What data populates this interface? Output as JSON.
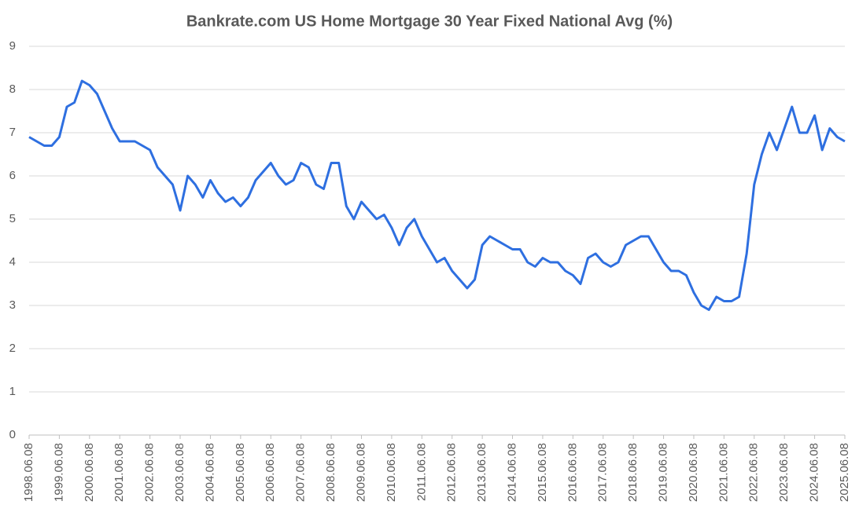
{
  "chart_data": {
    "type": "line",
    "title": "Bankrate.com US Home Mortgage 30 Year Fixed National Avg  (%)",
    "categories": [
      "1998.06.08",
      null,
      null,
      null,
      "1999.06.08",
      null,
      null,
      null,
      "2000.06.08",
      null,
      null,
      null,
      "2001.06.08",
      null,
      null,
      null,
      "2002.06.08",
      null,
      null,
      null,
      "2003.06.08",
      null,
      null,
      null,
      "2004.06.08",
      null,
      null,
      null,
      "2005.06.08",
      null,
      null,
      null,
      "2006.06.08",
      null,
      null,
      null,
      "2007.06.08",
      null,
      null,
      null,
      "2008.06.08",
      null,
      null,
      null,
      "2009.06.08",
      null,
      null,
      null,
      "2010.06.08",
      null,
      null,
      null,
      "2011.06.08",
      null,
      null,
      null,
      "2012.06.08",
      null,
      null,
      null,
      "2013.06.08",
      null,
      null,
      null,
      "2014.06.08",
      null,
      null,
      null,
      "2015.06.08",
      null,
      null,
      null,
      "2016.06.08",
      null,
      null,
      null,
      "2017.06.08",
      null,
      null,
      null,
      "2018.06.08",
      null,
      null,
      null,
      "2019.06.08",
      null,
      null,
      null,
      "2020.06.08",
      null,
      null,
      null,
      "2021.06.08",
      null,
      null,
      null,
      "2022.06.08",
      null,
      null,
      null,
      "2023.06.08",
      null,
      null,
      null,
      "2024.06.08",
      null,
      null,
      null,
      "2025.06.08"
    ],
    "values": [
      6.9,
      6.8,
      6.7,
      6.7,
      6.9,
      7.6,
      7.7,
      8.2,
      8.1,
      7.9,
      7.5,
      7.1,
      6.8,
      6.8,
      6.8,
      6.7,
      6.6,
      6.2,
      6.0,
      5.8,
      5.2,
      6.0,
      5.8,
      5.5,
      5.9,
      5.6,
      5.4,
      5.5,
      5.3,
      5.5,
      5.9,
      6.1,
      6.3,
      6.0,
      5.8,
      5.9,
      6.3,
      6.2,
      5.8,
      5.7,
      6.3,
      6.3,
      5.3,
      5.0,
      5.4,
      5.2,
      5.0,
      5.1,
      4.8,
      4.4,
      4.8,
      5.0,
      4.6,
      4.3,
      4.0,
      4.1,
      3.8,
      3.6,
      3.4,
      3.6,
      4.4,
      4.6,
      4.5,
      4.4,
      4.3,
      4.3,
      4.0,
      3.9,
      4.1,
      4.0,
      4.0,
      3.8,
      3.7,
      3.5,
      4.1,
      4.2,
      4.0,
      3.9,
      4.0,
      4.4,
      4.5,
      4.6,
      4.6,
      4.3,
      4.0,
      3.8,
      3.8,
      3.7,
      3.3,
      3.0,
      2.9,
      3.2,
      3.1,
      3.1,
      3.2,
      4.2,
      5.8,
      6.5,
      7.0,
      6.6,
      7.1,
      7.6,
      7.0,
      7.0,
      7.4,
      6.6,
      7.1,
      6.9,
      6.8
    ],
    "color": "#2e6fe0",
    "ylim": [
      0,
      9
    ],
    "yticks": [
      0,
      1,
      2,
      3,
      4,
      5,
      6,
      7,
      8,
      9
    ],
    "grid": true
  }
}
